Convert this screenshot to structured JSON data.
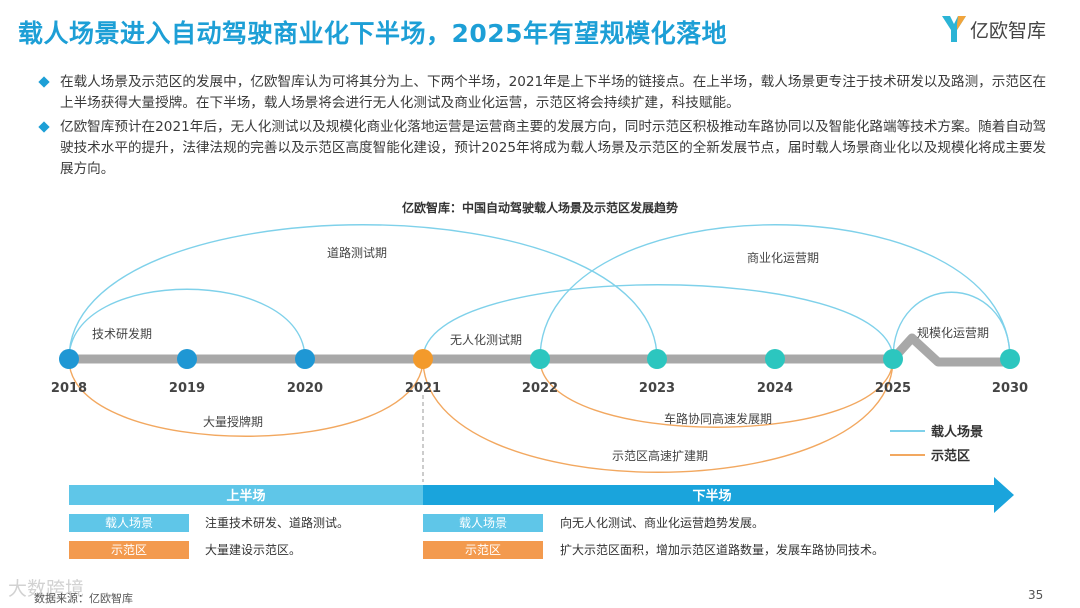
{
  "title": "载人场景进入自动驾驶商业化下半场，2025年有望规模化落地",
  "logo": {
    "text": "亿欧智库",
    "colors": {
      "cyan": "#2bb4d6",
      "orange": "#f2a43b"
    }
  },
  "bullets": [
    "在载人场景及示范区的发展中，亿欧智库认为可将其分为上、下两个半场，2021年是上下半场的链接点。在上半场，载人场景更专注于技术研发以及路测，示范区在上半场获得大量授牌。在下半场，载人场景将会进行无人化测试及商业化运营，示范区将会持续扩建，科技赋能。",
    "亿欧智库预计在2021年后，无人化测试以及规模化商业化落地运营是运营商主要的发展方向，同时示范区积极推动车路协同以及智能化路端等技术方案。随着自动驾驶技术水平的提升，法律法规的完善以及示范区高度智能化建设，预计2025年将成为载人场景及示范区的全新发展节点，届时载人场景商业化以及规模化将成主要发展方向。"
  ],
  "chart_title": "亿欧智库：中国自动驾驶载人场景及示范区发展趋势",
  "timeline": {
    "years": [
      "2018",
      "2019",
      "2020",
      "2021",
      "2022",
      "2023",
      "2024",
      "2025",
      "2030"
    ],
    "passenger_phases": [
      "道路测试期",
      "技术研发期",
      "无人化测试期",
      "商业化运营期",
      "规模化运营期"
    ],
    "demo_zone_phases": [
      "大量授牌期",
      "车路协同高速发展期",
      "示范区高速扩建期"
    ]
  },
  "legend": {
    "passenger": "载人场景",
    "demo_zone": "示范区"
  },
  "halves": {
    "first": "上半场",
    "second": "下半场"
  },
  "summary": {
    "first_half": [
      {
        "tag": "载人场景",
        "desc": "注重技术研发、道路测试。"
      },
      {
        "tag": "示范区",
        "desc": "大量建设示范区。"
      }
    ],
    "second_half": [
      {
        "tag": "载人场景",
        "desc": "向无人化测试、商业化运营趋势发展。"
      },
      {
        "tag": "示范区",
        "desc": "扩大示范区面积，增加示范区道路数量，发展车路协同技术。"
      }
    ]
  },
  "colors": {
    "title": "#1d9fd6",
    "passenger_line": "#7fd1ea",
    "demo_line": "#f2a860",
    "node_blue": "#1f97d4",
    "node_orange": "#f39a2b",
    "node_teal": "#2cc6bf",
    "axis": "#a8a8a8",
    "first_half_bar": "#5fc6e8",
    "second_half_bar": "#1aa4dc"
  },
  "source": "数据来源：亿欧智库",
  "page_number": "35",
  "watermark": "大数跨境"
}
